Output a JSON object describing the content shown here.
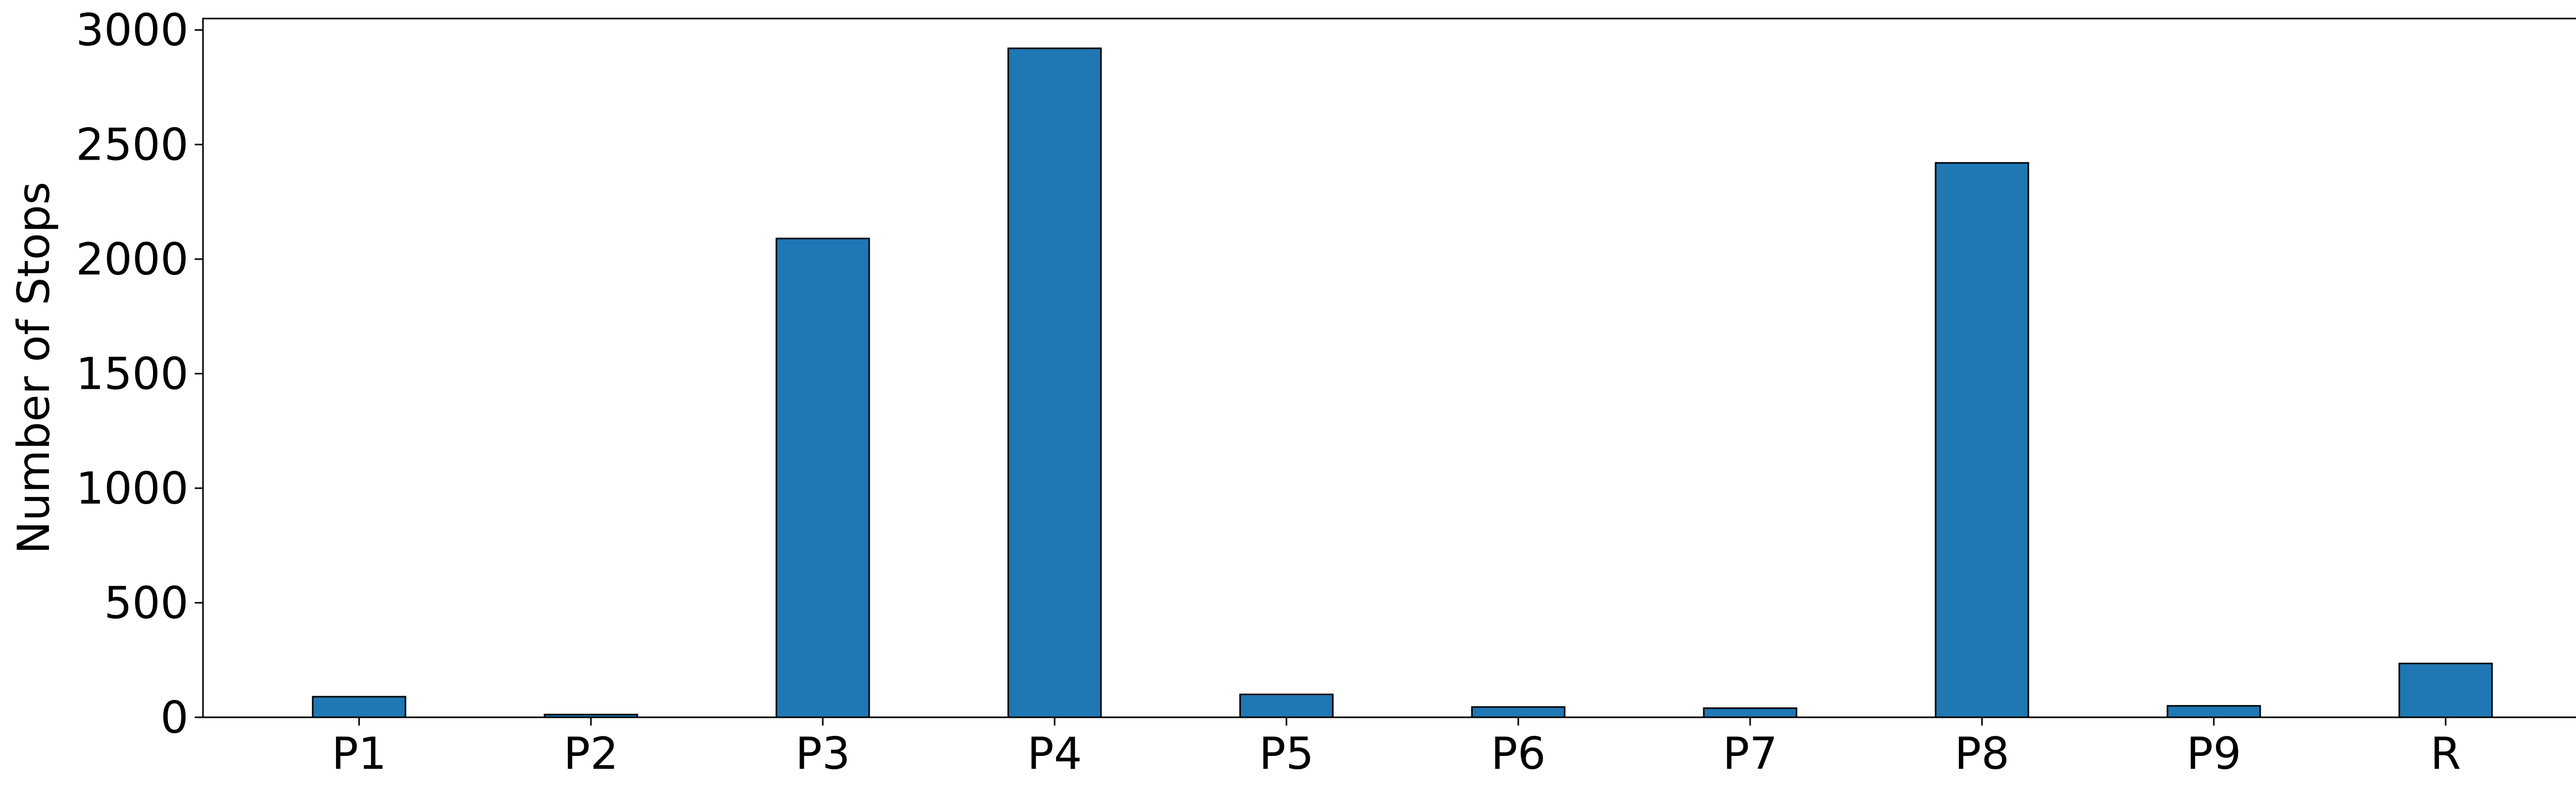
{
  "chart_data": {
    "type": "bar",
    "title": "",
    "xlabel": "",
    "ylabel": "Number of Stops",
    "categories": [
      "P1",
      "P2",
      "P3",
      "P4",
      "P5",
      "P6",
      "P7",
      "P8",
      "P9",
      "R"
    ],
    "values": [
      90,
      12,
      2090,
      2920,
      100,
      45,
      40,
      2420,
      50,
      235
    ],
    "ylim": [
      0,
      3050
    ],
    "yticks": [
      0,
      500,
      1000,
      1500,
      2000,
      2500,
      3000
    ],
    "ytick_labels": [
      "0",
      "500",
      "1000",
      "1500",
      "2000",
      "2500",
      "3000"
    ],
    "grid": false,
    "legend": "none",
    "colors": {
      "bar_fill": "#1f77b4",
      "bar_edge": "#000000",
      "axis": "#000000"
    }
  }
}
